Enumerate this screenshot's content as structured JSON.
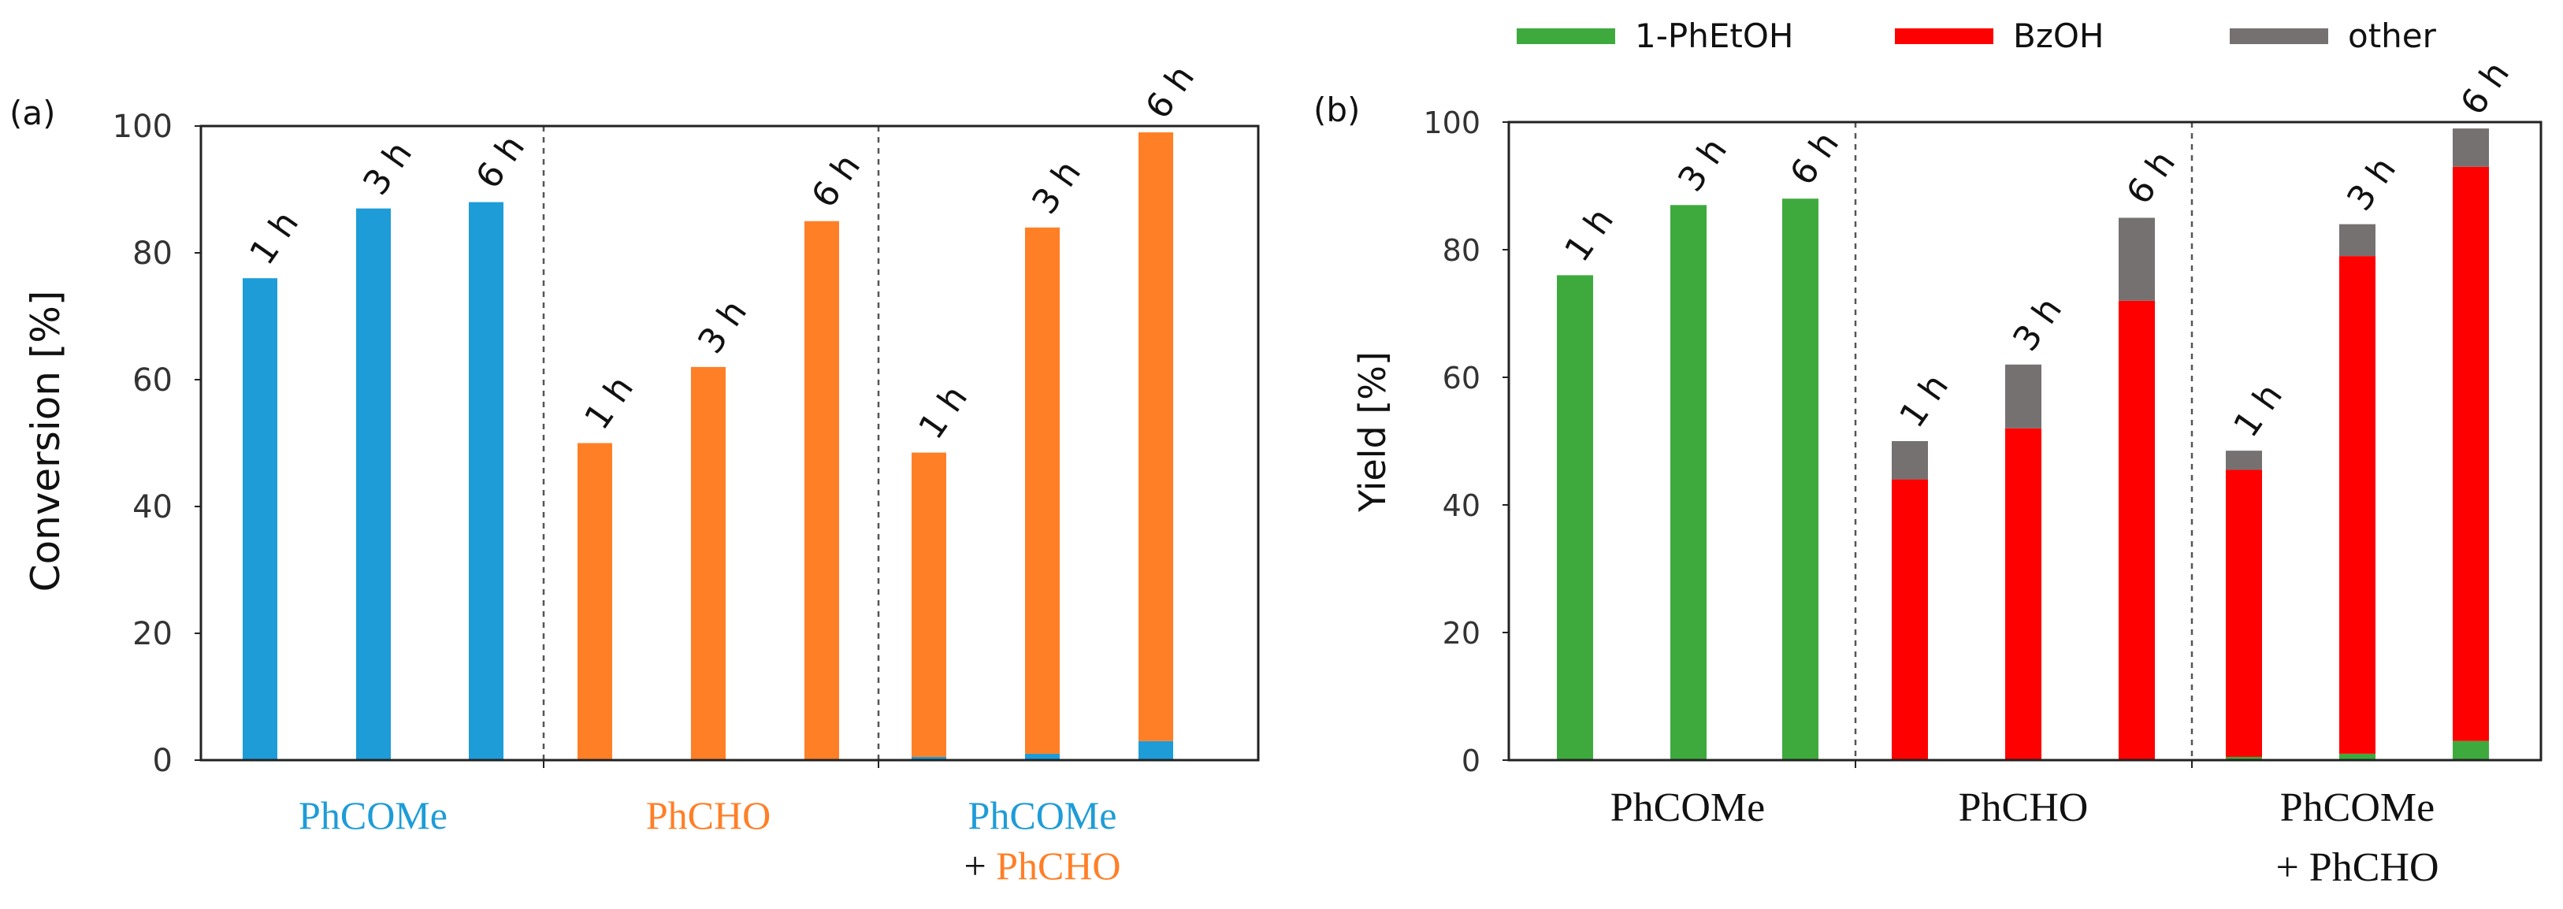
{
  "colors": {
    "blue": "#1E9CD7",
    "orange": "#FF7F27",
    "green": "#3EAA3E",
    "red": "#FF0000",
    "gray": "#767171",
    "black": "#111111"
  },
  "chart_data": [
    {
      "type": "bar",
      "panel_label": "(a)",
      "ylabel": "Conversion [%]",
      "ylim": [
        0,
        100
      ],
      "yticks": [
        "0",
        "20",
        "40",
        "60",
        "80",
        "100"
      ],
      "groups": [
        {
          "label_lines": [
            [
              {
                "text": "PhCOMe",
                "color": "blue"
              }
            ]
          ]
        },
        {
          "label_lines": [
            [
              {
                "text": "PhCHO",
                "color": "orange"
              }
            ]
          ]
        },
        {
          "label_lines": [
            [
              {
                "text": "PhCOMe",
                "color": "blue"
              }
            ],
            [
              {
                "text": "+ ",
                "color": "black"
              },
              {
                "text": "PhCHO",
                "color": "orange"
              }
            ]
          ]
        }
      ],
      "series": [
        {
          "name": "PhCOMe",
          "color": "blue"
        },
        {
          "name": "PhCHO",
          "color": "orange"
        }
      ],
      "bars": [
        {
          "group": 0,
          "time": "1 h",
          "values": [
            76,
            0
          ]
        },
        {
          "group": 0,
          "time": "3 h",
          "values": [
            87,
            0
          ]
        },
        {
          "group": 0,
          "time": "6 h",
          "values": [
            88,
            0
          ]
        },
        {
          "group": 1,
          "time": "1 h",
          "values": [
            0,
            50
          ]
        },
        {
          "group": 1,
          "time": "3 h",
          "values": [
            0,
            62
          ]
        },
        {
          "group": 1,
          "time": "6 h",
          "values": [
            0,
            85
          ]
        },
        {
          "group": 2,
          "time": "1 h",
          "values": [
            0.5,
            48
          ]
        },
        {
          "group": 2,
          "time": "3 h",
          "values": [
            1,
            83
          ]
        },
        {
          "group": 2,
          "time": "6 h",
          "values": [
            3,
            96
          ]
        }
      ]
    },
    {
      "type": "bar",
      "panel_label": "(b)",
      "ylabel": "Yield [%]",
      "ylim": [
        0,
        100
      ],
      "yticks": [
        "0",
        "20",
        "40",
        "60",
        "80",
        "100"
      ],
      "legend": [
        {
          "label": "1-PhEtOH",
          "color": "green"
        },
        {
          "label": "BzOH",
          "color": "red"
        },
        {
          "label": "other",
          "color": "gray"
        }
      ],
      "groups": [
        {
          "label_lines": [
            [
              {
                "text": "PhCOMe",
                "color": "black"
              }
            ]
          ]
        },
        {
          "label_lines": [
            [
              {
                "text": "PhCHO",
                "color": "black"
              }
            ]
          ]
        },
        {
          "label_lines": [
            [
              {
                "text": "PhCOMe",
                "color": "black"
              }
            ],
            [
              {
                "text": "+ PhCHO",
                "color": "black"
              }
            ]
          ]
        }
      ],
      "series": [
        {
          "name": "1-PhEtOH",
          "color": "green"
        },
        {
          "name": "BzOH",
          "color": "red"
        },
        {
          "name": "other",
          "color": "gray"
        }
      ],
      "bars": [
        {
          "group": 0,
          "time": "1 h",
          "values": [
            76,
            0,
            0
          ]
        },
        {
          "group": 0,
          "time": "3 h",
          "values": [
            87,
            0,
            0
          ]
        },
        {
          "group": 0,
          "time": "6 h",
          "values": [
            88,
            0,
            0
          ]
        },
        {
          "group": 1,
          "time": "1 h",
          "values": [
            0,
            44,
            6
          ]
        },
        {
          "group": 1,
          "time": "3 h",
          "values": [
            0,
            52,
            10
          ]
        },
        {
          "group": 1,
          "time": "6 h",
          "values": [
            0,
            72,
            13
          ]
        },
        {
          "group": 2,
          "time": "1 h",
          "values": [
            0.5,
            45,
            3
          ]
        },
        {
          "group": 2,
          "time": "3 h",
          "values": [
            1,
            78,
            5
          ]
        },
        {
          "group": 2,
          "time": "6 h",
          "values": [
            3,
            90,
            6
          ]
        }
      ]
    }
  ]
}
